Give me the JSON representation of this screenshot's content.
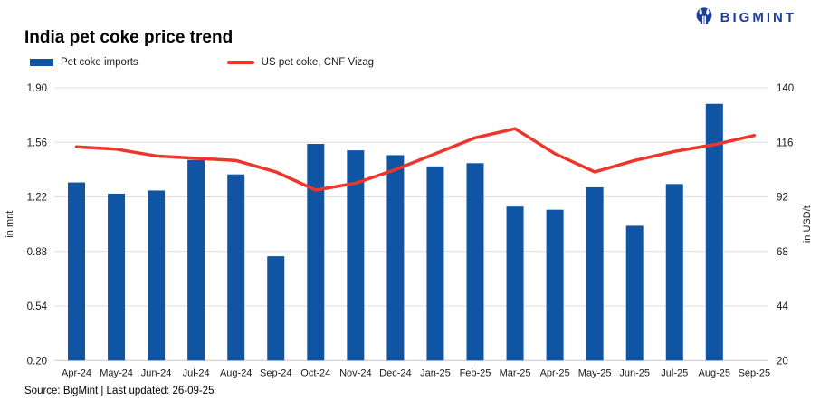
{
  "brand": {
    "name": "BIGMINT"
  },
  "header": {
    "title": "India pet coke price trend"
  },
  "legend": [
    {
      "label": "Pet coke imports",
      "type": "bar",
      "color": "#0f55a4"
    },
    {
      "label": "US pet coke, CNF Vizag",
      "type": "line",
      "color": "#ee352c"
    }
  ],
  "footer": {
    "source": "Source: BigMint | Last updated: 26-09-25"
  },
  "colors": {
    "bar_blue": "#0f55a4",
    "line_red": "#ee352c",
    "brand_navy": "#1c3f9c",
    "gridline": "#dedede",
    "axis_line": "#c9c9c9",
    "text": "#1a1a1a"
  },
  "chart_data": {
    "type": "bar",
    "title": "India pet coke price trend",
    "categories": [
      "Apr-24",
      "May-24",
      "Jun-24",
      "Jul-24",
      "Aug-24",
      "Sep-24",
      "Oct-24",
      "Nov-24",
      "Dec-24",
      "Jan-25",
      "Feb-25",
      "Mar-25",
      "Apr-25",
      "May-25",
      "Jun-25",
      "Jul-25",
      "Aug-25",
      "Sep-25"
    ],
    "series": [
      {
        "name": "Pet coke imports",
        "type": "bar",
        "axis": "left",
        "unit": "mnt",
        "color": "#0f55a4",
        "values": [
          1.31,
          1.24,
          1.26,
          1.45,
          1.36,
          0.85,
          1.55,
          1.51,
          1.48,
          1.41,
          1.43,
          1.16,
          1.14,
          1.28,
          1.04,
          1.3,
          1.8,
          null
        ]
      },
      {
        "name": "US pet coke, CNF Vizag",
        "type": "line",
        "axis": "right",
        "unit": "USD/t",
        "color": "#ee352c",
        "values": [
          114,
          113,
          110,
          109,
          108,
          103,
          95,
          98,
          104,
          111,
          118,
          122,
          111,
          103,
          108,
          112,
          115,
          119
        ]
      }
    ],
    "left_axis": {
      "label": "in mnt",
      "min": 0.2,
      "max": 1.9,
      "ticks": [
        "1.90",
        "1.56",
        "1.22",
        "0.88",
        "0.54",
        "0.20"
      ]
    },
    "right_axis": {
      "label": "in USD/t",
      "min": 20,
      "max": 140,
      "ticks": [
        "140",
        "116",
        "92",
        "68",
        "44",
        "20"
      ]
    },
    "grid": true,
    "legend_position": "top-left"
  }
}
